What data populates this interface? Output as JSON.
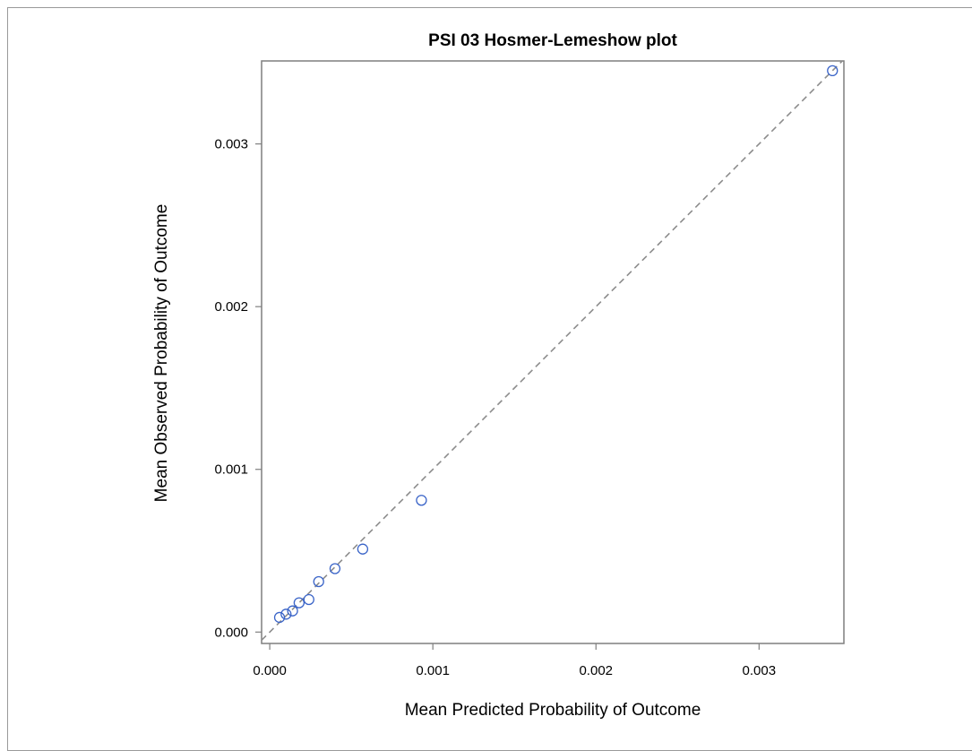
{
  "chart_data": {
    "type": "scatter",
    "title": "PSI 03 Hosmer-Lemeshow plot",
    "xlabel": "Mean Predicted Probability of Outcome",
    "ylabel": "Mean Observed Probability of Outcome",
    "xlim": [
      -5e-05,
      0.00352
    ],
    "ylim": [
      -7e-05,
      0.00351
    ],
    "x_ticks": [
      {
        "value": 0.0,
        "label": "0.000"
      },
      {
        "value": 0.001,
        "label": "0.001"
      },
      {
        "value": 0.002,
        "label": "0.002"
      },
      {
        "value": 0.003,
        "label": "0.003"
      }
    ],
    "y_ticks": [
      {
        "value": 0.0,
        "label": "0.000"
      },
      {
        "value": 0.001,
        "label": "0.001"
      },
      {
        "value": 0.002,
        "label": "0.002"
      },
      {
        "value": 0.003,
        "label": "0.003"
      }
    ],
    "grid": false,
    "reference_line": "diagonal (y = x), gray dashed",
    "marker": "open circle",
    "colors": {
      "marker": "#3a64c8",
      "reference_line": "#8c8c8c",
      "axes": "#7f7f7f"
    },
    "points": [
      {
        "x": 6e-05,
        "y": 9e-05
      },
      {
        "x": 0.0001,
        "y": 0.00011
      },
      {
        "x": 0.00014,
        "y": 0.00013
      },
      {
        "x": 0.00018,
        "y": 0.00018
      },
      {
        "x": 0.00024,
        "y": 0.0002
      },
      {
        "x": 0.0003,
        "y": 0.00031
      },
      {
        "x": 0.0004,
        "y": 0.00039
      },
      {
        "x": 0.00057,
        "y": 0.00051
      },
      {
        "x": 0.00093,
        "y": 0.00081
      },
      {
        "x": 0.00345,
        "y": 0.00345
      }
    ]
  }
}
